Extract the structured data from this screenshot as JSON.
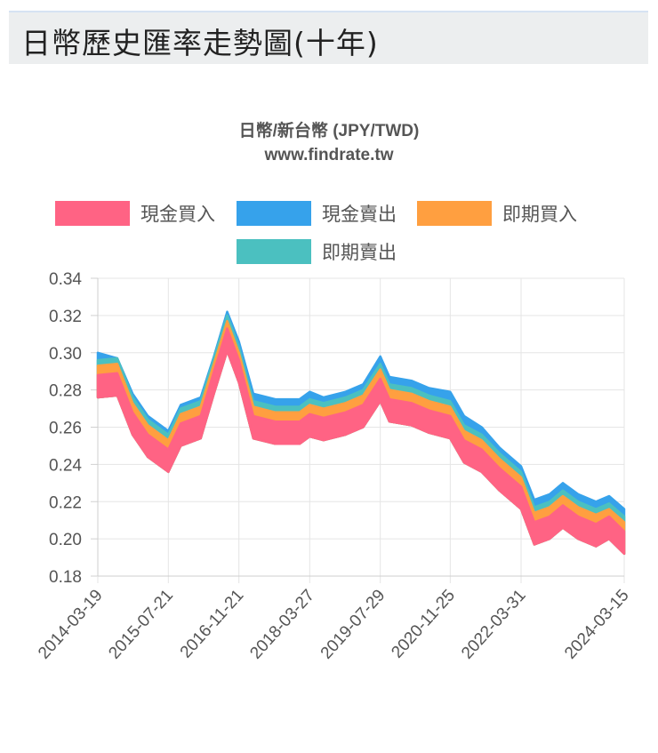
{
  "header": {
    "title": "日幣歷史匯率走勢圖(十年)"
  },
  "chart_data": {
    "type": "area",
    "title": "日幣/新台幣 (JPY/TWD)",
    "subtitle": "www.findrate.tw",
    "ylim": [
      0.18,
      0.34
    ],
    "y_ticks": [
      "0.34",
      "0.32",
      "0.30",
      "0.28",
      "0.26",
      "0.24",
      "0.22",
      "0.20",
      "0.18"
    ],
    "x_ticks": [
      "2014-03-19",
      "2015-07-21",
      "2016-11-21",
      "2018-03-27",
      "2019-07-29",
      "2020-11-25",
      "2022-03-31",
      "2024-03-15"
    ],
    "grid": true,
    "legend_position": "top",
    "colors": {
      "cash_buy": "#ff6384",
      "cash_sell": "#36a2eb",
      "spot_buy": "#ff9f40",
      "spot_sell": "#4bc0c0"
    },
    "x": [
      "2014-03-19",
      "2014-08-01",
      "2014-11-15",
      "2015-03-01",
      "2015-07-21",
      "2015-10-15",
      "2016-03-01",
      "2016-06-01",
      "2016-09-01",
      "2016-11-21",
      "2017-03-01",
      "2017-08-01",
      "2018-01-15",
      "2018-03-27",
      "2018-07-01",
      "2018-12-01",
      "2019-04-01",
      "2019-07-29",
      "2019-10-01",
      "2020-03-01",
      "2020-07-01",
      "2020-11-25",
      "2021-03-01",
      "2021-07-01",
      "2021-11-01",
      "2022-03-31",
      "2022-07-01",
      "2022-10-15",
      "2023-01-15",
      "2023-05-01",
      "2023-09-01",
      "2023-12-01",
      "2024-03-15"
    ],
    "series": [
      {
        "name": "現金買入",
        "values": [
          0.288,
          0.289,
          0.268,
          0.256,
          0.248,
          0.262,
          0.266,
          0.29,
          0.313,
          0.296,
          0.266,
          0.263,
          0.263,
          0.267,
          0.265,
          0.268,
          0.272,
          0.286,
          0.275,
          0.273,
          0.269,
          0.266,
          0.253,
          0.248,
          0.238,
          0.228,
          0.209,
          0.212,
          0.218,
          0.212,
          0.208,
          0.212,
          0.204
        ]
      },
      {
        "name": "現金賣出",
        "values": [
          0.3,
          0.297,
          0.278,
          0.266,
          0.258,
          0.272,
          0.276,
          0.298,
          0.322,
          0.306,
          0.278,
          0.275,
          0.275,
          0.279,
          0.276,
          0.279,
          0.283,
          0.298,
          0.287,
          0.285,
          0.281,
          0.279,
          0.266,
          0.26,
          0.249,
          0.239,
          0.221,
          0.224,
          0.23,
          0.224,
          0.22,
          0.223,
          0.216
        ]
      },
      {
        "name": "即期買入",
        "values": [
          0.293,
          0.294,
          0.273,
          0.261,
          0.253,
          0.267,
          0.271,
          0.294,
          0.317,
          0.3,
          0.271,
          0.268,
          0.268,
          0.272,
          0.27,
          0.273,
          0.277,
          0.291,
          0.28,
          0.278,
          0.274,
          0.271,
          0.258,
          0.253,
          0.243,
          0.233,
          0.214,
          0.217,
          0.223,
          0.217,
          0.213,
          0.216,
          0.209
        ]
      },
      {
        "name": "即期賣出",
        "values": [
          0.296,
          0.297,
          0.276,
          0.264,
          0.256,
          0.27,
          0.274,
          0.297,
          0.32,
          0.303,
          0.274,
          0.271,
          0.271,
          0.275,
          0.273,
          0.276,
          0.28,
          0.294,
          0.283,
          0.281,
          0.277,
          0.274,
          0.261,
          0.256,
          0.246,
          0.236,
          0.217,
          0.22,
          0.226,
          0.22,
          0.216,
          0.219,
          0.212
        ]
      }
    ]
  }
}
